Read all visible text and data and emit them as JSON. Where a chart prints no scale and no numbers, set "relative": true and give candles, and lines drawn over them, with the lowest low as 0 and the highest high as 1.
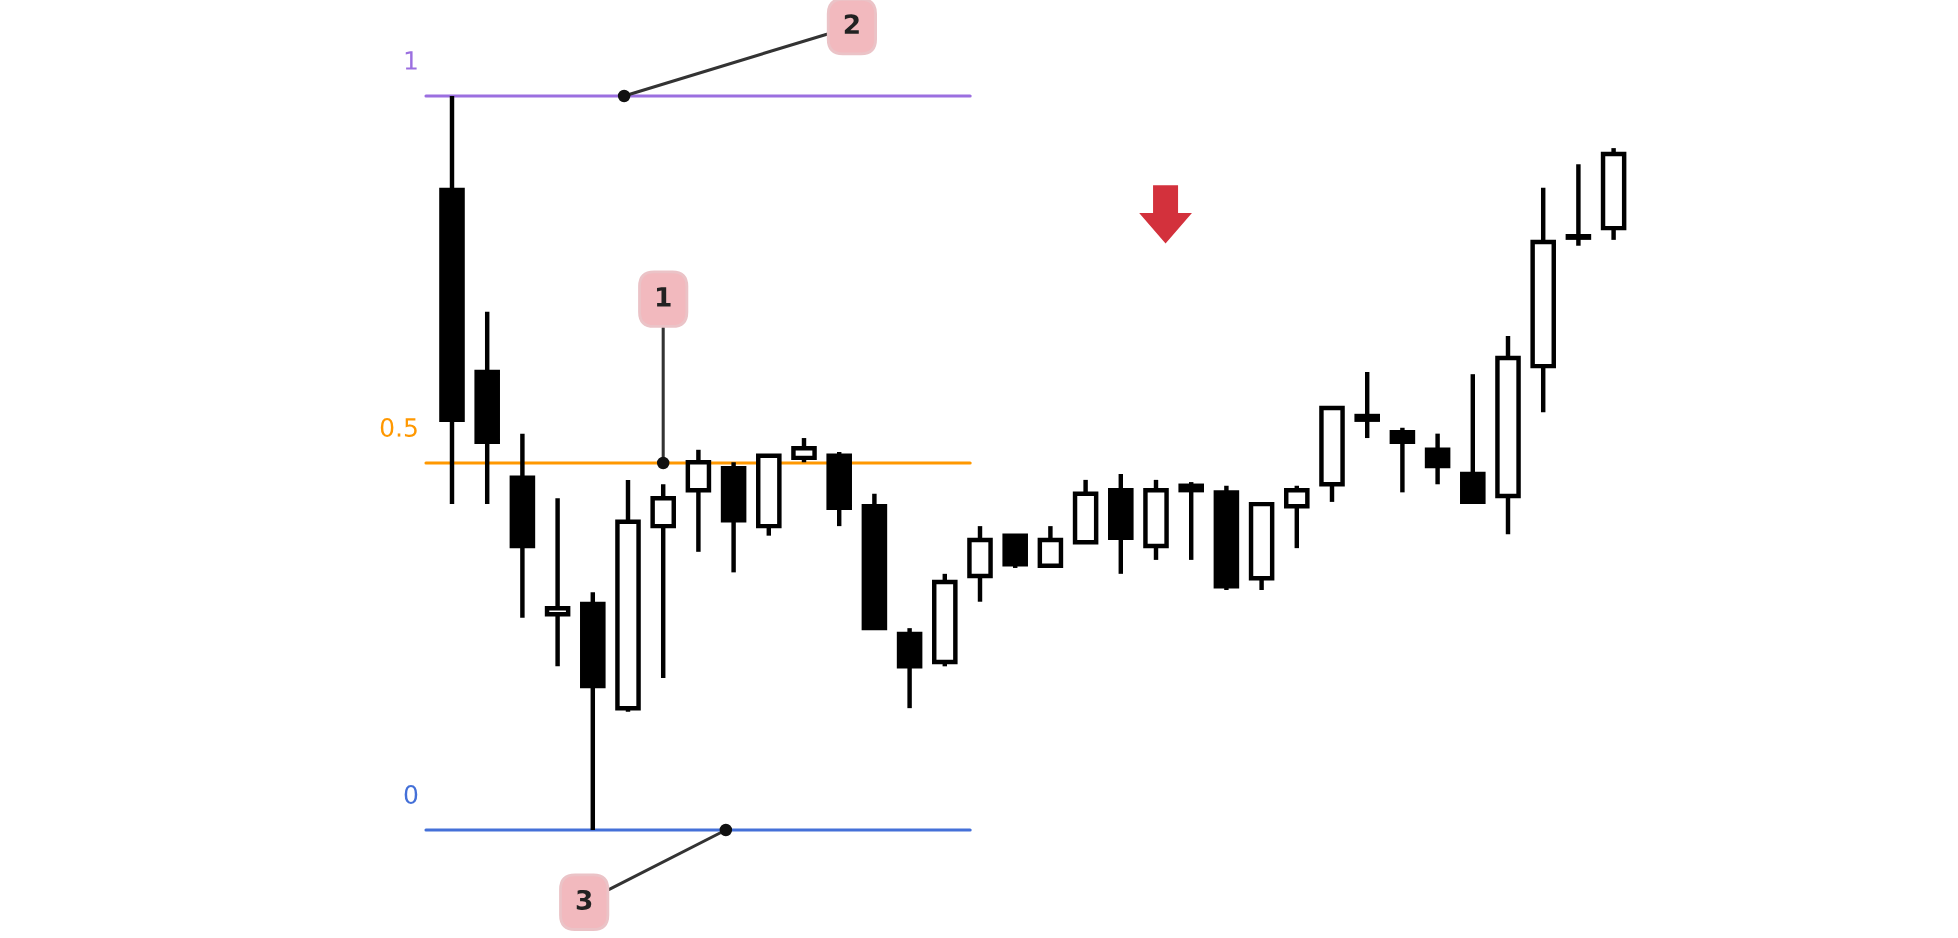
{
  "chart_data": {
    "type": "candlestick",
    "relative": true,
    "categories": [
      null,
      null,
      null,
      null,
      null,
      null,
      null,
      null,
      null,
      null,
      null,
      null,
      null,
      null,
      null,
      null,
      null,
      null,
      null,
      null,
      null,
      null,
      null,
      null,
      null,
      null,
      null,
      null,
      null,
      null,
      null,
      null,
      null,
      null
    ],
    "ohlc": [
      [
        0.872,
        1.0,
        0.444,
        0.559
      ],
      [
        0.624,
        0.706,
        0.444,
        0.529
      ],
      [
        0.48,
        0.54,
        0.289,
        0.387
      ],
      [
        0.294,
        0.452,
        0.223,
        0.302
      ],
      [
        0.308,
        0.324,
        0.0,
        0.196
      ],
      [
        0.166,
        0.477,
        0.161,
        0.42
      ],
      [
        0.414,
        0.471,
        0.207,
        0.452
      ],
      [
        0.463,
        0.518,
        0.379,
        0.501
      ],
      [
        0.493,
        0.501,
        0.351,
        0.422
      ],
      [
        0.414,
        0.51,
        0.401,
        0.51
      ],
      [
        0.507,
        0.534,
        0.501,
        0.52
      ],
      [
        0.51,
        0.515,
        0.414,
        0.439
      ],
      [
        0.441,
        0.458,
        0.275,
        0.275
      ],
      [
        0.267,
        0.275,
        0.166,
        0.223
      ],
      [
        0.229,
        0.349,
        0.223,
        0.338
      ],
      [
        0.346,
        0.414,
        0.311,
        0.395
      ],
      [
        0.401,
        0.401,
        0.357,
        0.362
      ],
      [
        0.36,
        0.414,
        0.36,
        0.395
      ],
      [
        0.392,
        0.477,
        0.392,
        0.458
      ],
      [
        0.463,
        0.485,
        0.349,
        0.398
      ],
      [
        0.387,
        0.477,
        0.368,
        0.463
      ],
      [
        0.463,
        0.474,
        0.368,
        0.469
      ],
      [
        0.46,
        0.469,
        0.327,
        0.332
      ],
      [
        0.343,
        0.444,
        0.327,
        0.444
      ],
      [
        0.441,
        0.469,
        0.384,
        0.463
      ],
      [
        0.471,
        0.575,
        0.447,
        0.575
      ],
      [
        0.559,
        0.624,
        0.534,
        0.564
      ],
      [
        0.542,
        0.548,
        0.46,
        0.529
      ],
      [
        0.518,
        0.54,
        0.471,
        0.496
      ],
      [
        0.485,
        0.621,
        0.447,
        0.447
      ],
      [
        0.455,
        0.673,
        0.403,
        0.643
      ],
      [
        0.632,
        0.875,
        0.569,
        0.801
      ],
      [
        0.807,
        0.907,
        0.796,
        0.809
      ],
      [
        0.82,
        0.929,
        0.804,
        0.921
      ]
    ],
    "ref_lines": [
      {
        "axis": "y",
        "value": 1,
        "label": "1",
        "color": "#9b6fe0"
      },
      {
        "axis": "y",
        "value": 0.5,
        "label": "0.5",
        "color": "#ff9800"
      },
      {
        "axis": "y",
        "value": 0,
        "label": "0",
        "color": "#4470d8"
      }
    ],
    "annotations": [
      {
        "text": "1",
        "y": 0.5
      },
      {
        "text": "2",
        "y": 1
      },
      {
        "text": "3",
        "y": 0
      }
    ]
  }
}
